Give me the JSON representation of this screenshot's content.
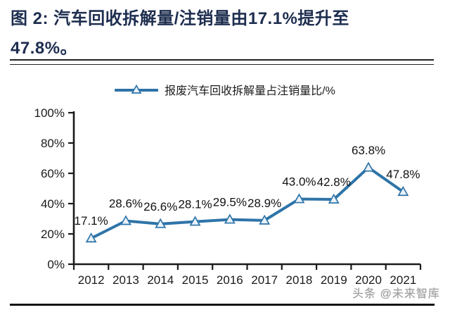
{
  "header": {
    "title": "图 2: 汽车回收拆解量/注销量由17.1%提升至47.8%。",
    "title_lines": [
      "图 2: 汽车回收拆解量/注销量由17.1%提升至",
      "47.8%。"
    ]
  },
  "page": {
    "watermark": "头条 @未来智库"
  },
  "chart_data": {
    "type": "line",
    "title": "",
    "legend": [
      "报废汽车回收拆解量占注销量比/%"
    ],
    "legend_position": "top-center",
    "categories": [
      "2012",
      "2013",
      "2014",
      "2015",
      "2016",
      "2017",
      "2018",
      "2019",
      "2020",
      "2021"
    ],
    "series": [
      {
        "name": "报废汽车回收拆解量占注销量比/%",
        "values": [
          17.1,
          28.6,
          26.6,
          28.1,
          29.5,
          28.9,
          43.0,
          42.8,
          63.8,
          47.8
        ]
      }
    ],
    "data_labels": [
      "17.1%",
      "28.6%",
      "26.6%",
      "28.1%",
      "29.5%",
      "28.9%",
      "43.0%",
      "42.8%",
      "63.8%",
      "47.8%"
    ],
    "xlabel": "",
    "ylabel": "",
    "ylim": [
      0,
      100
    ],
    "ytick_values": [
      0,
      20,
      40,
      60,
      80,
      100
    ],
    "ytick_labels": [
      "0%",
      "20%",
      "40%",
      "60%",
      "80%",
      "100%"
    ],
    "grid": false,
    "marker": "triangle-up",
    "colors": {
      "line": "#2e74a8",
      "marker_fill": "#e9f2f9",
      "axis": "#1a1a1a",
      "label": "#111111",
      "title": "#1e2e4f",
      "watermark": "#9e9e9e"
    }
  }
}
